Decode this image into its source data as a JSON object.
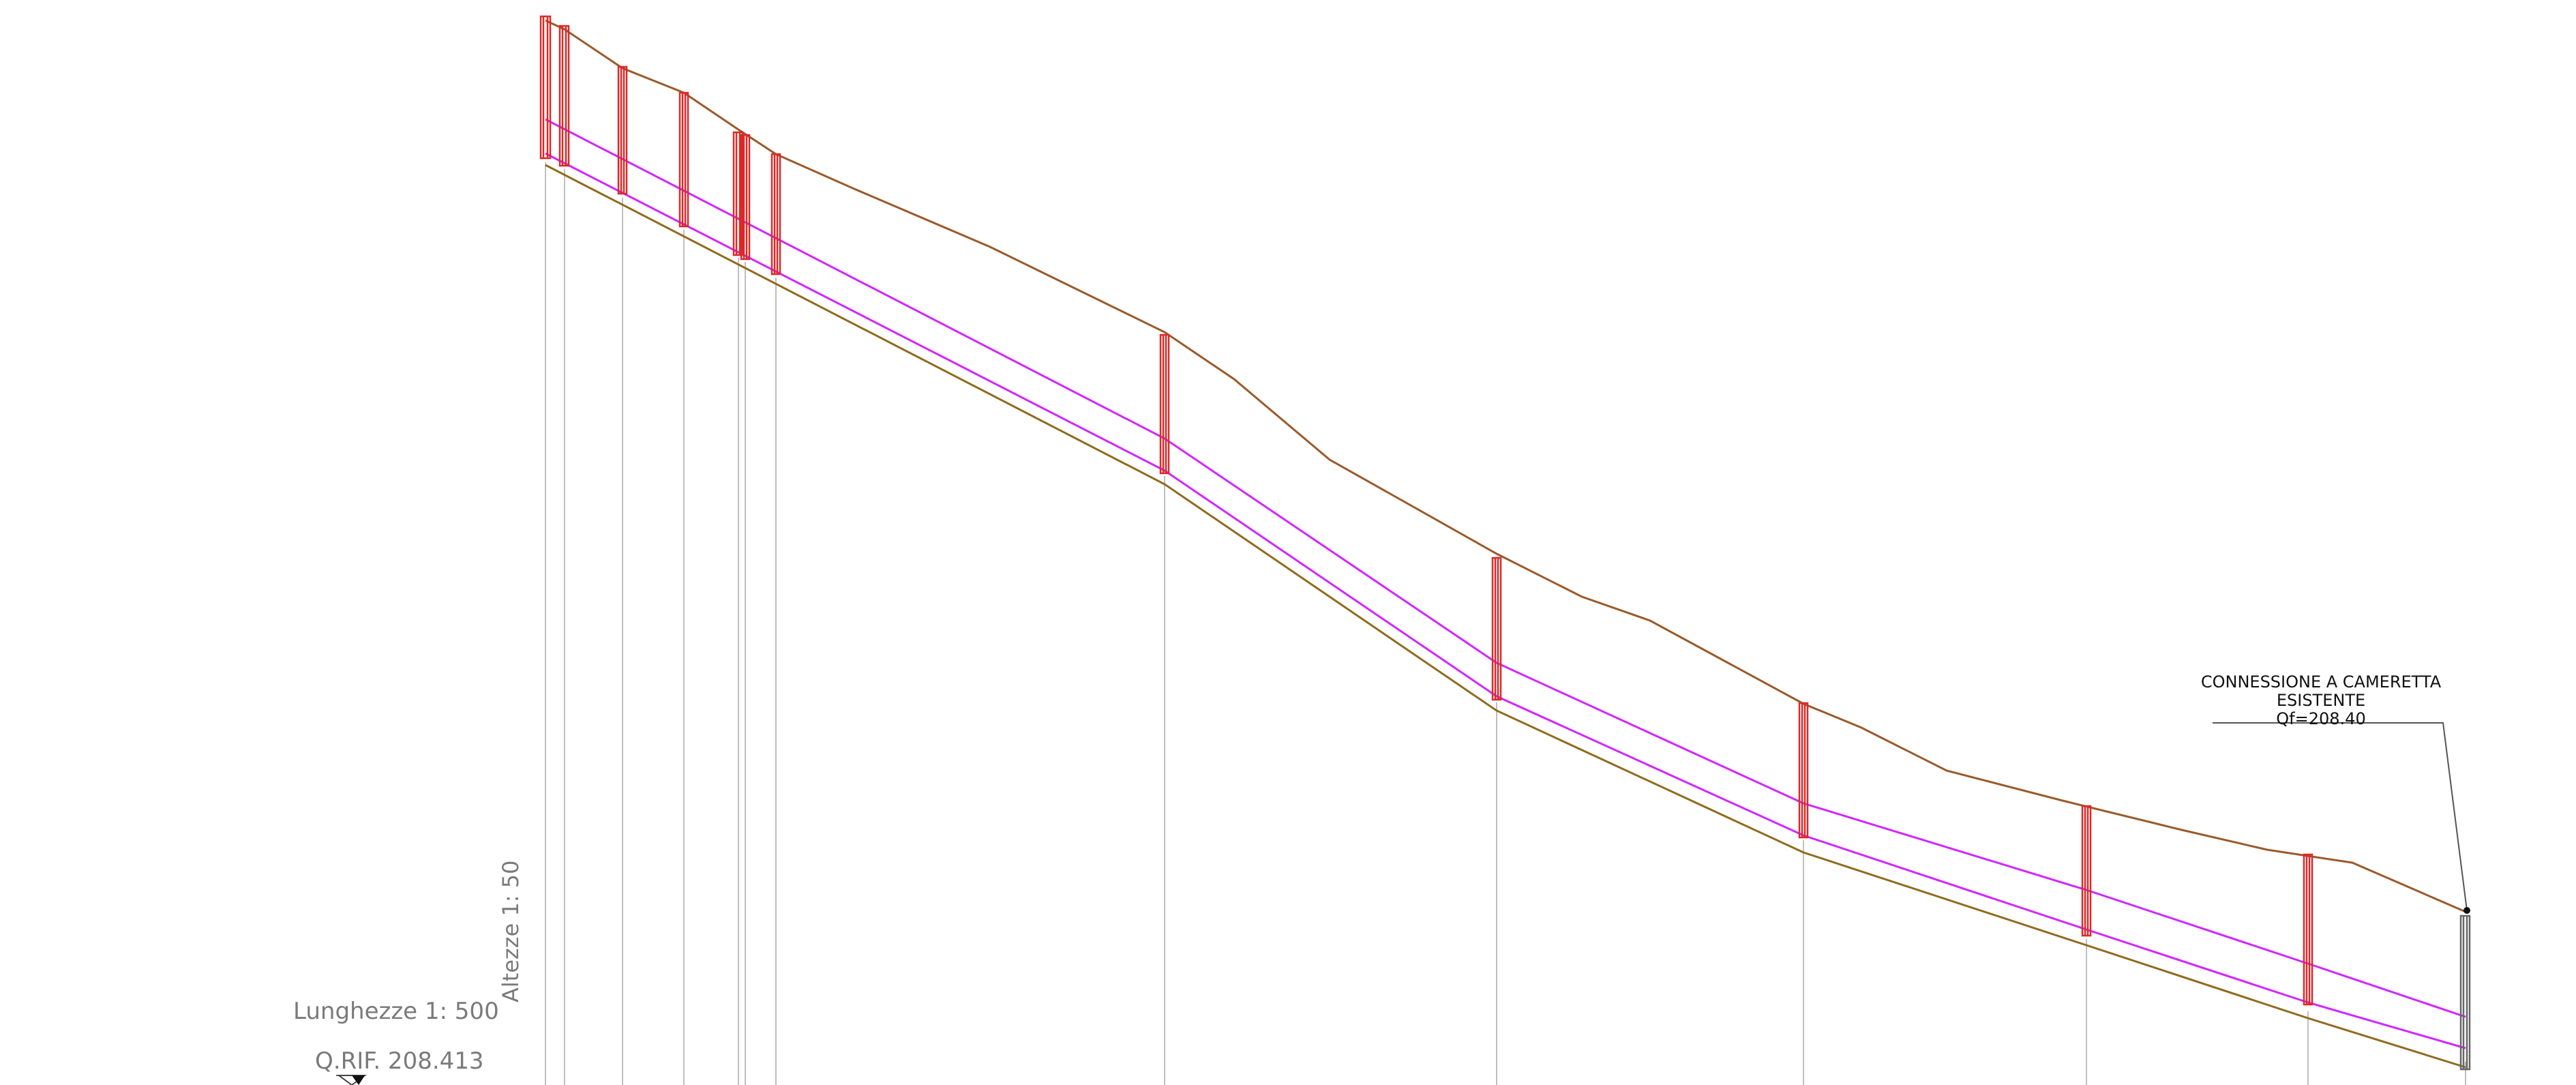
{
  "colors": {
    "ground_profile": "#9a5a2a",
    "pipe_lines": "#d226ff",
    "trench_bottom": "#8f6b1d",
    "manholes": "#dc2828",
    "existing_manhole": "#666666",
    "reference_lines": "#bfbfbf",
    "labels_gray": "#7a7a7a",
    "labels_black": "#111111"
  },
  "scale_labels": {
    "vertical_scale": "Altezze  1: 50",
    "horizontal_scale": "Lunghezze  1: 500",
    "reference_elevation": "Q.RIF.  208.413"
  },
  "callout": {
    "line1": "CONNESSIONE  A  CAMERETTA",
    "line2": "ESISTENTE",
    "line3": "Qf=208.40"
  },
  "profile_icons": {
    "reference_marker": "triangle-elevation-marker-icon",
    "connection_point": "dot-marker-icon"
  }
}
